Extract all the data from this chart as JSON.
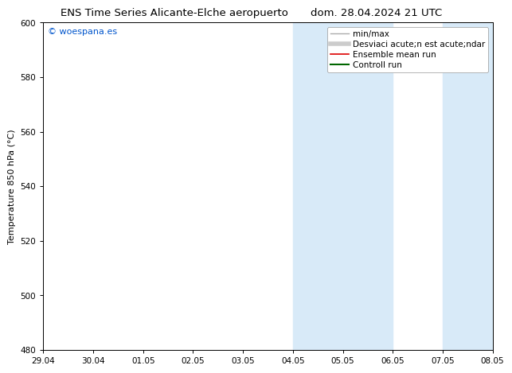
{
  "title_left": "ENS Time Series Alicante-Elche aeropuerto",
  "title_right": "dom. 28.04.2024 21 UTC",
  "ylabel": "Temperature 850 hPa (°C)",
  "watermark": "© woespana.es",
  "watermark_color": "#0055cc",
  "xlim_start": 0,
  "xlim_end": 9,
  "ylim": [
    480,
    600
  ],
  "yticks": [
    480,
    500,
    520,
    540,
    560,
    580,
    600
  ],
  "xtick_labels": [
    "29.04",
    "30.04",
    "01.05",
    "02.05",
    "03.05",
    "04.05",
    "05.05",
    "06.05",
    "07.05",
    "08.05"
  ],
  "shaded_bands": [
    {
      "x_start": 5,
      "x_end": 7
    },
    {
      "x_start": 8,
      "x_end": 9
    }
  ],
  "shade_color": "#d8eaf8",
  "shade_alpha": 1.0,
  "legend_entries": [
    {
      "label": "min/max",
      "color": "#aaaaaa",
      "lw": 1.0
    },
    {
      "label": "Desviaci acute;n est acute;ndar",
      "color": "#cccccc",
      "lw": 4.0
    },
    {
      "label": "Ensemble mean run",
      "color": "#dd0000",
      "lw": 1.2
    },
    {
      "label": "Controll run",
      "color": "#006600",
      "lw": 1.5
    }
  ],
  "bg_color": "#ffffff",
  "plot_bg_color": "#ffffff",
  "tick_fontsize": 7.5,
  "label_fontsize": 8,
  "title_fontsize": 9.5,
  "legend_fontsize": 7.5
}
